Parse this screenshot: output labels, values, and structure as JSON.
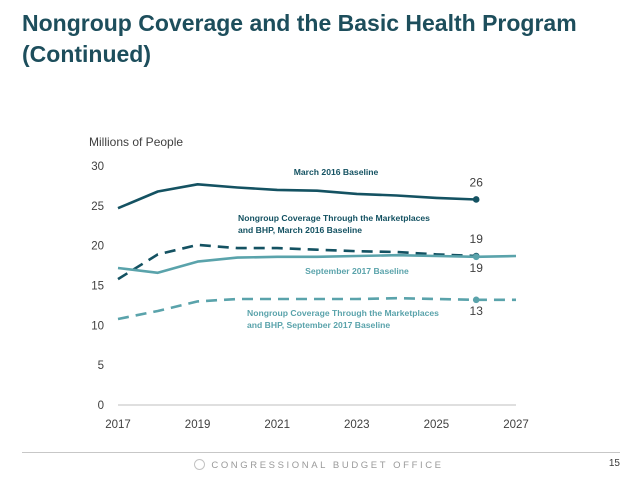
{
  "slide": {
    "title_line1": "Nongroup Coverage and the Basic Health Program",
    "title_line2": "(Continued)",
    "footer_org": "CONGRESSIONAL BUDGET OFFICE",
    "page_number": "15"
  },
  "colors": {
    "dark_teal": "#145262",
    "light_teal": "#5aa3ab",
    "axis_text": "#404040",
    "title": "#1d4e5c"
  },
  "chart_data": {
    "type": "line",
    "ylabel": "Millions of People",
    "xlabel": "",
    "xlim": [
      2017,
      2027
    ],
    "ylim": [
      0,
      30
    ],
    "grid": false,
    "x_ticks": [
      "2017",
      "2019",
      "2021",
      "2023",
      "2025",
      "2027"
    ],
    "y_ticks": [
      "0",
      "5",
      "10",
      "15",
      "20",
      "25",
      "30"
    ],
    "series": [
      {
        "name": "March 2016 Baseline",
        "label_lines": [
          "March 2016 Baseline"
        ],
        "style": "solid",
        "color": "#145262",
        "x": [
          2017,
          2018,
          2019,
          2020,
          2021,
          2022,
          2023,
          2024,
          2025,
          2026
        ],
        "values": [
          24.7,
          26.8,
          27.7,
          27.3,
          27.0,
          26.9,
          26.5,
          26.3,
          26.0,
          25.8
        ],
        "end_label": "26"
      },
      {
        "name": "Nongroup Coverage Through the Marketplaces and BHP, March 2016 Baseline",
        "label_lines": [
          "Nongroup Coverage Through the Marketplaces",
          "and BHP, March 2016 Baseline"
        ],
        "style": "dashed",
        "color": "#145262",
        "x": [
          2017,
          2018,
          2019,
          2020,
          2021,
          2022,
          2023,
          2024,
          2025,
          2026
        ],
        "values": [
          15.8,
          18.9,
          20.1,
          19.7,
          19.7,
          19.5,
          19.3,
          19.2,
          18.9,
          18.7
        ],
        "end_label": "19"
      },
      {
        "name": "September 2017 Baseline",
        "label_lines": [
          "September 2017 Baseline"
        ],
        "style": "solid",
        "color": "#5aa3ab",
        "x": [
          2017,
          2018,
          2019,
          2020,
          2021,
          2022,
          2023,
          2024,
          2025,
          2026,
          2027
        ],
        "values": [
          17.2,
          16.6,
          18.0,
          18.5,
          18.6,
          18.6,
          18.7,
          18.8,
          18.7,
          18.6,
          18.7
        ],
        "end_label": "19"
      },
      {
        "name": "Nongroup Coverage Through the Marketplaces and BHP, September 2017 Baseline",
        "label_lines": [
          "Nongroup Coverage Through the Marketplaces",
          "and BHP, September 2017 Baseline"
        ],
        "style": "dashed",
        "color": "#5aa3ab",
        "x": [
          2017,
          2018,
          2019,
          2020,
          2021,
          2022,
          2023,
          2024,
          2025,
          2026,
          2027
        ],
        "values": [
          10.8,
          11.8,
          13.0,
          13.3,
          13.3,
          13.3,
          13.3,
          13.4,
          13.3,
          13.2,
          13.2
        ],
        "end_label": "13"
      }
    ]
  }
}
